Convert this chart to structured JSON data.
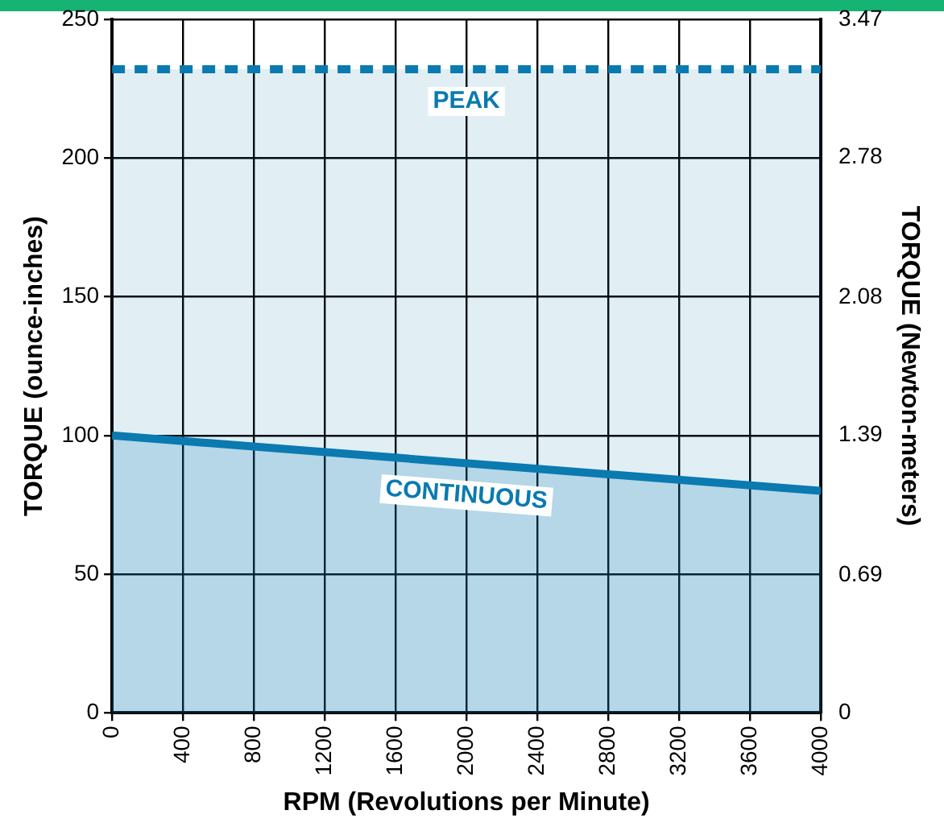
{
  "chart_data": {
    "type": "area",
    "xlabel": "RPM (Revolutions per Minute)",
    "ylabel": "TORQUE (ounce-inches)",
    "y2label": "TORQUE (Newton-meters)",
    "x": [
      0,
      4000
    ],
    "series": [
      {
        "name": "CONTINUOUS",
        "color": "#0a7ab0",
        "values": [
          100,
          80
        ]
      },
      {
        "name": "PEAK",
        "color": "#0a7ab0",
        "line_style": "dashed",
        "values": [
          232,
          232
        ]
      }
    ],
    "xlim": [
      0,
      4000
    ],
    "xticks": [
      0,
      400,
      800,
      1200,
      1600,
      2000,
      2400,
      2800,
      3200,
      3600,
      4000
    ],
    "ylim": [
      0,
      250
    ],
    "yticks": [
      0,
      50,
      100,
      150,
      200,
      250
    ],
    "y2lim": [
      0,
      3.47
    ],
    "y2ticks": [
      0,
      0.69,
      1.39,
      2.08,
      2.78,
      3.47
    ],
    "grid": true,
    "legend": false
  }
}
